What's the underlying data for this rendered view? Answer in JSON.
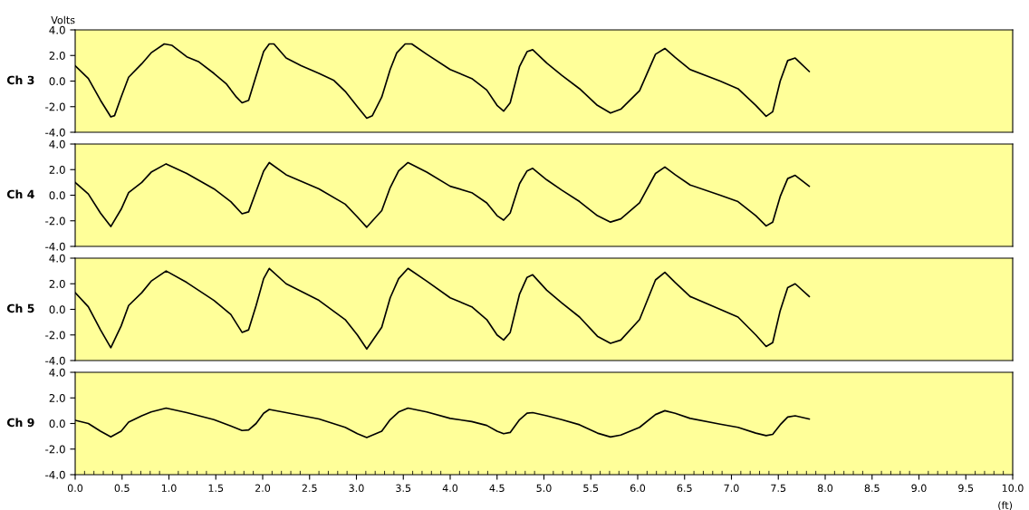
{
  "chart_data": [
    {
      "type": "line",
      "ylabel": "Ch 3",
      "annotations": [
        "Volts"
      ],
      "xlim": [
        0,
        10
      ],
      "ylim": [
        -4,
        4
      ],
      "yticks": [
        {
          "value": -4,
          "label": "-4.0"
        },
        {
          "value": -2,
          "label": "-2.0"
        },
        {
          "value": 0,
          "label": "0.0"
        },
        {
          "value": 2,
          "label": "2.0"
        },
        {
          "value": 4,
          "label": "4.0"
        }
      ],
      "tick_labels": "y",
      "grid": false,
      "legend": false,
      "marker": "none",
      "line_style": "solid",
      "series": [
        {
          "color": "#000000",
          "x": [
            0,
            0.14,
            0.27,
            0.38,
            0.42,
            0.49,
            0.57,
            0.71,
            0.81,
            0.95,
            1.03,
            1.19,
            1.32,
            1.48,
            1.61,
            1.72,
            1.78,
            1.85,
            1.93,
            2.01,
            2.07,
            2.12,
            2.25,
            2.41,
            2.6,
            2.76,
            2.88,
            3.01,
            3.11,
            3.17,
            3.27,
            3.36,
            3.43,
            3.52,
            3.59,
            3.75,
            4.0,
            4.23,
            4.39,
            4.5,
            4.57,
            4.64,
            4.74,
            4.82,
            4.88,
            5.03,
            5.19,
            5.38,
            5.57,
            5.71,
            5.82,
            6.02,
            6.19,
            6.29,
            6.4,
            6.56,
            6.88,
            7.07,
            7.26,
            7.37,
            7.44,
            7.52,
            7.6,
            7.68,
            7.83
          ],
          "values": [
            1.2,
            0.2,
            -1.5,
            -2.8,
            -2.7,
            -1.25,
            0.3,
            1.35,
            2.2,
            2.9,
            2.8,
            1.9,
            1.5,
            0.6,
            -0.2,
            -1.25,
            -1.7,
            -1.5,
            0.4,
            2.3,
            2.9,
            2.9,
            1.8,
            1.2,
            0.6,
            0.05,
            -0.8,
            -2.0,
            -2.9,
            -2.7,
            -1.25,
            0.9,
            2.2,
            2.9,
            2.9,
            2.1,
            0.9,
            0.2,
            -0.7,
            -1.9,
            -2.35,
            -1.7,
            1.15,
            2.3,
            2.45,
            1.4,
            0.45,
            -0.6,
            -1.9,
            -2.5,
            -2.2,
            -0.75,
            2.1,
            2.55,
            1.85,
            0.9,
            0.0,
            -0.6,
            -1.9,
            -2.75,
            -2.4,
            0.0,
            1.6,
            1.8,
            0.75
          ]
        }
      ]
    },
    {
      "type": "line",
      "ylabel": "Ch 4",
      "xlim": [
        0,
        10
      ],
      "ylim": [
        -4,
        4
      ],
      "yticks": [
        {
          "value": -4,
          "label": "-4.0"
        },
        {
          "value": -2,
          "label": "-2.0"
        },
        {
          "value": 0,
          "label": "0.0"
        },
        {
          "value": 2,
          "label": "2.0"
        },
        {
          "value": 4,
          "label": "4.0"
        }
      ],
      "tick_labels": "y",
      "grid": false,
      "legend": false,
      "marker": "none",
      "line_style": "solid",
      "series": [
        {
          "color": "#000000",
          "x": [
            0,
            0.14,
            0.27,
            0.38,
            0.49,
            0.57,
            0.71,
            0.81,
            0.97,
            1.19,
            1.48,
            1.66,
            1.78,
            1.85,
            1.93,
            2.01,
            2.07,
            2.25,
            2.6,
            2.88,
            3.01,
            3.11,
            3.27,
            3.36,
            3.45,
            3.55,
            3.75,
            4.0,
            4.23,
            4.39,
            4.5,
            4.57,
            4.64,
            4.74,
            4.82,
            4.88,
            5.03,
            5.19,
            5.38,
            5.57,
            5.71,
            5.82,
            6.02,
            6.19,
            6.29,
            6.4,
            6.56,
            6.88,
            7.07,
            7.26,
            7.37,
            7.44,
            7.52,
            7.6,
            7.68,
            7.83
          ],
          "values": [
            1.0,
            0.1,
            -1.4,
            -2.45,
            -1.1,
            0.2,
            1.0,
            1.8,
            2.45,
            1.7,
            0.5,
            -0.5,
            -1.45,
            -1.3,
            0.3,
            1.9,
            2.55,
            1.6,
            0.5,
            -0.7,
            -1.7,
            -2.5,
            -1.2,
            0.6,
            1.9,
            2.55,
            1.8,
            0.7,
            0.2,
            -0.6,
            -1.6,
            -1.95,
            -1.4,
            0.9,
            1.9,
            2.1,
            1.2,
            0.4,
            -0.5,
            -1.6,
            -2.1,
            -1.85,
            -0.6,
            1.7,
            2.2,
            1.6,
            0.8,
            0.0,
            -0.5,
            -1.6,
            -2.4,
            -2.1,
            -0.1,
            1.3,
            1.55,
            0.7
          ]
        }
      ]
    },
    {
      "type": "line",
      "ylabel": "Ch 5",
      "xlim": [
        0,
        10
      ],
      "ylim": [
        -4,
        4
      ],
      "yticks": [
        {
          "value": -4,
          "label": "-4.0"
        },
        {
          "value": -2,
          "label": "-2.0"
        },
        {
          "value": 0,
          "label": "0.0"
        },
        {
          "value": 2,
          "label": "2.0"
        },
        {
          "value": 4,
          "label": "4.0"
        }
      ],
      "tick_labels": "y",
      "grid": false,
      "legend": false,
      "marker": "none",
      "line_style": "solid",
      "series": [
        {
          "color": "#000000",
          "x": [
            0,
            0.14,
            0.27,
            0.38,
            0.49,
            0.57,
            0.71,
            0.81,
            0.97,
            1.19,
            1.48,
            1.66,
            1.78,
            1.85,
            1.93,
            2.01,
            2.07,
            2.25,
            2.6,
            2.88,
            3.01,
            3.11,
            3.27,
            3.36,
            3.45,
            3.55,
            3.75,
            4.0,
            4.23,
            4.39,
            4.5,
            4.57,
            4.64,
            4.74,
            4.82,
            4.88,
            5.03,
            5.19,
            5.38,
            5.57,
            5.71,
            5.82,
            6.02,
            6.19,
            6.29,
            6.4,
            6.56,
            6.88,
            7.07,
            7.26,
            7.37,
            7.44,
            7.52,
            7.6,
            7.68,
            7.83
          ],
          "values": [
            1.3,
            0.2,
            -1.6,
            -3.0,
            -1.3,
            0.3,
            1.3,
            2.2,
            3.0,
            2.1,
            0.7,
            -0.4,
            -1.8,
            -1.6,
            0.3,
            2.4,
            3.2,
            2.0,
            0.7,
            -0.8,
            -2.0,
            -3.1,
            -1.4,
            0.9,
            2.4,
            3.2,
            2.2,
            0.9,
            0.2,
            -0.8,
            -2.0,
            -2.4,
            -1.8,
            1.2,
            2.5,
            2.7,
            1.5,
            0.5,
            -0.6,
            -2.1,
            -2.65,
            -2.4,
            -0.8,
            2.3,
            2.9,
            2.1,
            1.0,
            0.0,
            -0.6,
            -2.0,
            -2.9,
            -2.6,
            -0.1,
            1.7,
            2.0,
            1.0
          ]
        }
      ]
    },
    {
      "type": "line",
      "ylabel": "Ch 9",
      "xlabel": "(ft)",
      "xlim": [
        0,
        10
      ],
      "ylim": [
        -4,
        4
      ],
      "xticks": [
        {
          "value": 0,
          "label": "0.0"
        },
        {
          "value": 0.5,
          "label": "0.5"
        },
        {
          "value": 1,
          "label": "1.0"
        },
        {
          "value": 1.5,
          "label": "1.5"
        },
        {
          "value": 2,
          "label": "2.0"
        },
        {
          "value": 2.5,
          "label": "2.5"
        },
        {
          "value": 3,
          "label": "3.0"
        },
        {
          "value": 3.5,
          "label": "3.5"
        },
        {
          "value": 4,
          "label": "4.0"
        },
        {
          "value": 4.5,
          "label": "4.5"
        },
        {
          "value": 5,
          "label": "5.0"
        },
        {
          "value": 5.5,
          "label": "5.5"
        },
        {
          "value": 6,
          "label": "6.0"
        },
        {
          "value": 6.5,
          "label": "6.5"
        },
        {
          "value": 7,
          "label": "7.0"
        },
        {
          "value": 7.5,
          "label": "7.5"
        },
        {
          "value": 8,
          "label": "8.0"
        },
        {
          "value": 8.5,
          "label": "8.5"
        },
        {
          "value": 9,
          "label": "9.0"
        },
        {
          "value": 9.5,
          "label": "9.5"
        },
        {
          "value": 10,
          "label": "10.0"
        }
      ],
      "yticks": [
        {
          "value": -4,
          "label": "-4.0"
        },
        {
          "value": -2,
          "label": "-2.0"
        },
        {
          "value": 0,
          "label": "0.0"
        },
        {
          "value": 2,
          "label": "2.0"
        },
        {
          "value": 4,
          "label": "4.0"
        }
      ],
      "grid": false,
      "legend": false,
      "marker": "none",
      "line_style": "solid",
      "series": [
        {
          "color": "#000000",
          "x": [
            0,
            0.14,
            0.27,
            0.38,
            0.49,
            0.57,
            0.71,
            0.81,
            0.97,
            1.19,
            1.48,
            1.66,
            1.78,
            1.85,
            1.93,
            2.01,
            2.07,
            2.25,
            2.6,
            2.88,
            3.01,
            3.11,
            3.27,
            3.36,
            3.45,
            3.55,
            3.75,
            4.0,
            4.23,
            4.39,
            4.5,
            4.57,
            4.64,
            4.74,
            4.82,
            4.88,
            5.03,
            5.19,
            5.38,
            5.57,
            5.71,
            5.82,
            6.02,
            6.19,
            6.29,
            6.4,
            6.56,
            6.88,
            7.07,
            7.26,
            7.37,
            7.44,
            7.52,
            7.6,
            7.68,
            7.83
          ],
          "values": [
            0.25,
            0.0,
            -0.6,
            -1.05,
            -0.6,
            0.1,
            0.6,
            0.9,
            1.2,
            0.85,
            0.3,
            -0.2,
            -0.55,
            -0.5,
            0.0,
            0.8,
            1.1,
            0.85,
            0.35,
            -0.3,
            -0.8,
            -1.1,
            -0.6,
            0.3,
            0.9,
            1.2,
            0.9,
            0.4,
            0.15,
            -0.15,
            -0.6,
            -0.8,
            -0.7,
            0.3,
            0.8,
            0.85,
            0.6,
            0.3,
            -0.1,
            -0.75,
            -1.05,
            -0.9,
            -0.3,
            0.7,
            1.0,
            0.8,
            0.4,
            -0.05,
            -0.3,
            -0.75,
            -0.95,
            -0.85,
            -0.1,
            0.5,
            0.6,
            0.35
          ]
        }
      ]
    }
  ]
}
